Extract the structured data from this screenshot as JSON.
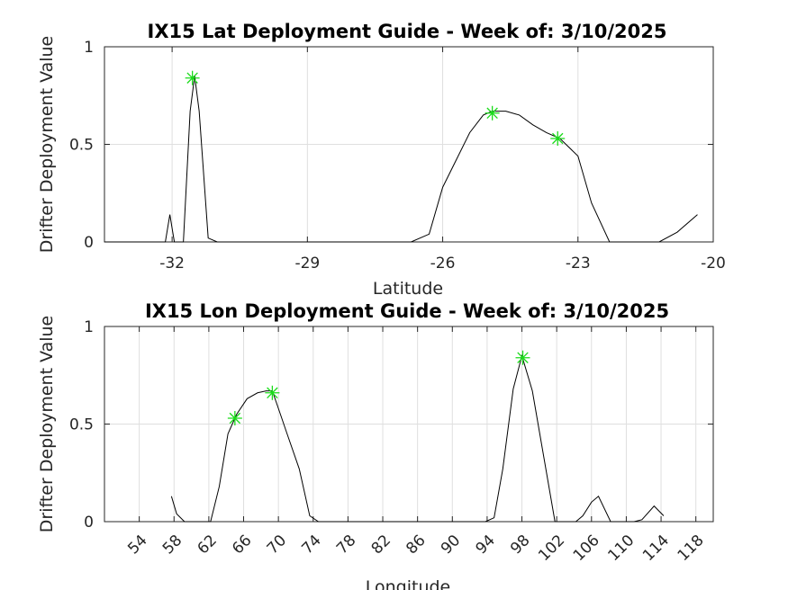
{
  "chart_data": [
    {
      "type": "line",
      "title": "IX15 Lat Deployment Guide - Week of: 3/10/2025",
      "xlabel": "Latitude",
      "ylabel": "Drifter Deployment Value",
      "xlim": [
        -33.5,
        -20
      ],
      "ylim": [
        0,
        1
      ],
      "xticks": [
        -32,
        -29,
        -26,
        -23,
        -20
      ],
      "yticks": [
        0,
        0.5,
        1
      ],
      "ytick_labels": [
        "0",
        "0.5",
        "1"
      ],
      "grid": true,
      "series": [
        {
          "x": [
            -33.5,
            -32.15,
            -32.05,
            -31.95,
            -31.75,
            -31.6,
            -31.5,
            -31.4,
            -31.2,
            -31.0,
            -30.5,
            -27.0,
            -26.7,
            -26.3,
            -26.0,
            -25.7,
            -25.4,
            -25.1,
            -24.9,
            -24.6,
            -24.3,
            -24.0,
            -23.7,
            -23.4,
            -23.0,
            -22.7,
            -22.3,
            -21.8,
            -21.2,
            -20.8,
            -20.35
          ],
          "y": [
            0,
            0,
            0.14,
            0,
            0,
            0.67,
            0.85,
            0.67,
            0.02,
            0,
            0,
            0,
            0,
            0.04,
            0.28,
            0.42,
            0.56,
            0.65,
            0.67,
            0.67,
            0.65,
            0.6,
            0.56,
            0.53,
            0.44,
            0.2,
            0,
            0,
            0,
            0.05,
            0.14
          ],
          "color": "#000000"
        }
      ],
      "markers": {
        "x": [
          -31.55,
          -24.9,
          -23.45
        ],
        "y": [
          0.84,
          0.66,
          0.53
        ],
        "color": "#1adb1a",
        "symbol": "asterisk"
      }
    },
    {
      "type": "line",
      "title": "IX15 Lon Deployment Guide - Week of: 3/10/2025",
      "xlabel": "Longitude",
      "ylabel": "Drifter Deployment Value",
      "xlim": [
        50,
        120
      ],
      "ylim": [
        0,
        1
      ],
      "xticks": [
        54,
        58,
        62,
        66,
        70,
        74,
        78,
        82,
        86,
        90,
        94,
        98,
        102,
        106,
        110,
        114,
        118
      ],
      "yticks": [
        0,
        0.5,
        1
      ],
      "ytick_labels": [
        "0",
        "0.5",
        "1"
      ],
      "grid": true,
      "series": [
        {
          "x": [
            57.7,
            58.3,
            59.2,
            62.2,
            63.2,
            64.2,
            65.2,
            66.4,
            67.6,
            68.6,
            69.3,
            70.0,
            71.0,
            72.4,
            73.6,
            74.6,
            93.8,
            94.8,
            95.8,
            97.0,
            98.0,
            99.2,
            101.8,
            104.2,
            105.0,
            106.0,
            106.8,
            108.2,
            110.9,
            111.8,
            113.2,
            114.3
          ],
          "y": [
            0.13,
            0.04,
            0,
            0,
            0.18,
            0.45,
            0.55,
            0.63,
            0.66,
            0.67,
            0.67,
            0.58,
            0.45,
            0.27,
            0.03,
            0,
            0,
            0.02,
            0.27,
            0.68,
            0.85,
            0.67,
            0,
            0,
            0.03,
            0.1,
            0.13,
            0,
            0,
            0.01,
            0.08,
            0.03
          ],
          "color": "#000000"
        }
      ],
      "markers": {
        "x": [
          65.0,
          69.3,
          98.1
        ],
        "y": [
          0.53,
          0.66,
          0.84
        ],
        "color": "#1adb1a",
        "symbol": "asterisk"
      }
    }
  ]
}
